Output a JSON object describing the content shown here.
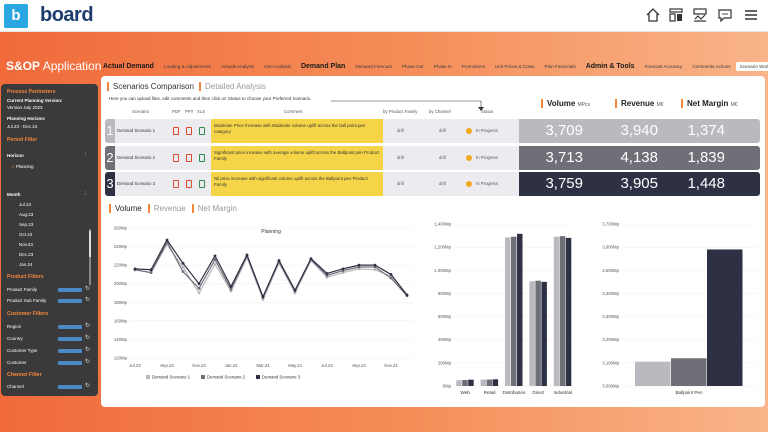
{
  "header": {
    "logo_mark": "b",
    "logo_text": "board",
    "icons": [
      "home-icon",
      "layout-icon",
      "dashboard-icon",
      "chat-icon",
      "menu-icon"
    ]
  },
  "app": {
    "title_bold": "S&OP",
    "title_rest": " Application"
  },
  "nav": {
    "sections": [
      {
        "label": "Actual Demand",
        "items": [
          "Loading & Adjustments",
          "Actuals Analysis",
          "Geo Analysis"
        ]
      },
      {
        "label": "Demand Plan",
        "items": [
          "Demand Forecast",
          "Phase Out",
          "Phase In",
          "Promotions",
          "Unit Prices & Costs",
          "Plan Financials"
        ]
      },
      {
        "label": "Admin & Tools",
        "items": [
          "Forecast Accuracy",
          "Comments Actions",
          "Scenario Workflow"
        ]
      }
    ],
    "active": "Scenario Workflow"
  },
  "sidebar": {
    "process_parameters": "Process Perimeters",
    "current_version_label": "Current Planning Version:",
    "current_version_value": "Version July 2023",
    "horizon_label": "Planning Horizon:",
    "horizon_value": "Jul.23 - Dec.24",
    "period_filter": "Period Filter",
    "horizon": "Horizon",
    "horizon_option": "Planning",
    "month": "Month",
    "months": [
      "Jul.23",
      "Aug.23",
      "Sep.23",
      "Oct.23",
      "Nov.23",
      "Dec.23",
      "Jan.24"
    ],
    "product_filters": "Product Filters",
    "product_family": "Product Family",
    "product_sub_family": "Product Sub Family",
    "customer_filters": "Customer Filters",
    "region": "Region",
    "country": "Country",
    "customer_type": "Customer Type",
    "customer": "Customer",
    "channel_filter": "Channel Filter",
    "channel": "Channel"
  },
  "main": {
    "tab_active": "Scenarios Comparison",
    "tab_inactive": "Detailed Analysis",
    "info": "Here you can upload files, edit comments and then click on Status to choose your Preferred Scenario",
    "columns": {
      "scenario": "Scenario",
      "pdf": "PDF",
      "ppt": "PPT",
      "xls": "XLS",
      "comment": "Comment",
      "by_product_family": "by Product Family",
      "by_channel": "by Channel",
      "status": "Status"
    },
    "kpis": [
      {
        "label": "Volume",
        "unit": "MPcs"
      },
      {
        "label": "Revenue",
        "unit": "M€"
      },
      {
        "label": "Net Margin",
        "unit": "M€"
      }
    ],
    "scenarios": [
      {
        "num": "1",
        "name": "Demand Scenario 1",
        "comment": "Moderate Price Increase with Moderate volume uplift across the ball point pen category",
        "drill1": "drill",
        "drill2": "drill",
        "status": "In Progress",
        "volume": "3,709",
        "revenue": "3,940",
        "margin": "1,374",
        "color": "#b9b9bf"
      },
      {
        "num": "2",
        "name": "Demand Scenario 2",
        "comment": "Significant price increase with average volume uplift across the Ballpoint pen Product Family",
        "drill1": "drill",
        "drill2": "drill",
        "status": "In Progress",
        "volume": "3,713",
        "revenue": "4,138",
        "margin": "1,839",
        "color": "#6f6f78"
      },
      {
        "num": "3",
        "name": "Demand Scenario 3",
        "comment": "Nil price increase with significant volume uplift across the Ballpoint pen Product Family",
        "drill1": "drill",
        "drill2": "drill",
        "status": "In Progress",
        "volume": "3,759",
        "revenue": "3,905",
        "margin": "1,448",
        "color": "#2e3143"
      }
    ]
  },
  "chart_tabs": [
    "Volume",
    "Revenue",
    "Net Margin"
  ],
  "chart_data": [
    {
      "type": "line",
      "title": "Planning",
      "x": [
        "Jul.23",
        "Aug.23",
        "Sep.23",
        "Oct.23",
        "Nov.23",
        "Dec.23",
        "Jan.24",
        "Feb.24",
        "Mar.24",
        "Apr.24",
        "May.24",
        "Jun.24",
        "Jul.24",
        "Aug.24",
        "Sep.24",
        "Oct.24",
        "Nov.24",
        "Dec.24"
      ],
      "tick_labels": [
        "Jul.23",
        "Sep.23",
        "Nov.23",
        "Jan.24",
        "Mar.24",
        "May.24",
        "Jul.24",
        "Sep.24",
        "Nov.24"
      ],
      "ylim": [
        120,
        260
      ],
      "yticks": [
        "120Mp",
        "140Mp",
        "160Mp",
        "180Mp",
        "200Mp",
        "220Mp",
        "240Mp",
        "260Mp"
      ],
      "series": [
        {
          "name": "Demand Scenario 1",
          "color": "#b9b9bf",
          "values": [
            215,
            212,
            242,
            218,
            190,
            221,
            192,
            228,
            183,
            222,
            190,
            225,
            207,
            212,
            216,
            215,
            208,
            187
          ]
        },
        {
          "name": "Demand Scenario 2",
          "color": "#6f6f78",
          "values": [
            215,
            212,
            245,
            213,
            195,
            226,
            194,
            230,
            185,
            224,
            192,
            226,
            209,
            214,
            218,
            218,
            206,
            187
          ]
        },
        {
          "name": "Demand Scenario 3",
          "color": "#2e3143",
          "values": [
            216,
            215,
            247,
            222,
            200,
            230,
            197,
            231,
            186,
            225,
            193,
            227,
            211,
            216,
            220,
            220,
            210,
            188
          ]
        }
      ]
    },
    {
      "type": "bar",
      "categories": [
        "Web",
        "Retail",
        "Distribution",
        "Direct",
        "Industrial"
      ],
      "ylim": [
        0,
        1400
      ],
      "yticks": [
        "0Mp",
        "200Mp",
        "400Mp",
        "600Mp",
        "800Mp",
        "1,000Mp",
        "1,200Mp",
        "1,400Mp"
      ],
      "series": [
        {
          "name": "Demand Scenario 1",
          "color": "#b9b9bf",
          "values": [
            50,
            55,
            1285,
            905,
            1290
          ]
        },
        {
          "name": "Demand Scenario 2",
          "color": "#6f6f78",
          "values": [
            52,
            56,
            1290,
            910,
            1295
          ]
        },
        {
          "name": "Demand Scenario 3",
          "color": "#2e3143",
          "values": [
            55,
            58,
            1315,
            900,
            1280
          ]
        }
      ]
    },
    {
      "type": "bar",
      "categories": [
        "Ballpoint Pen"
      ],
      "ylim": [
        3000,
        3700
      ],
      "yticks": [
        "3,000Mp",
        "3,100Mp",
        "3,200Mp",
        "3,300Mp",
        "3,400Mp",
        "3,500Mp",
        "3,600Mp",
        "3,700Mp"
      ],
      "series": [
        {
          "name": "Demand Scenario 1",
          "color": "#b9b9bf",
          "values": [
            3105
          ]
        },
        {
          "name": "Demand Scenario 2",
          "color": "#6f6f78",
          "values": [
            3120
          ]
        },
        {
          "name": "Demand Scenario 3",
          "color": "#2e3143",
          "values": [
            3590
          ]
        }
      ]
    }
  ]
}
